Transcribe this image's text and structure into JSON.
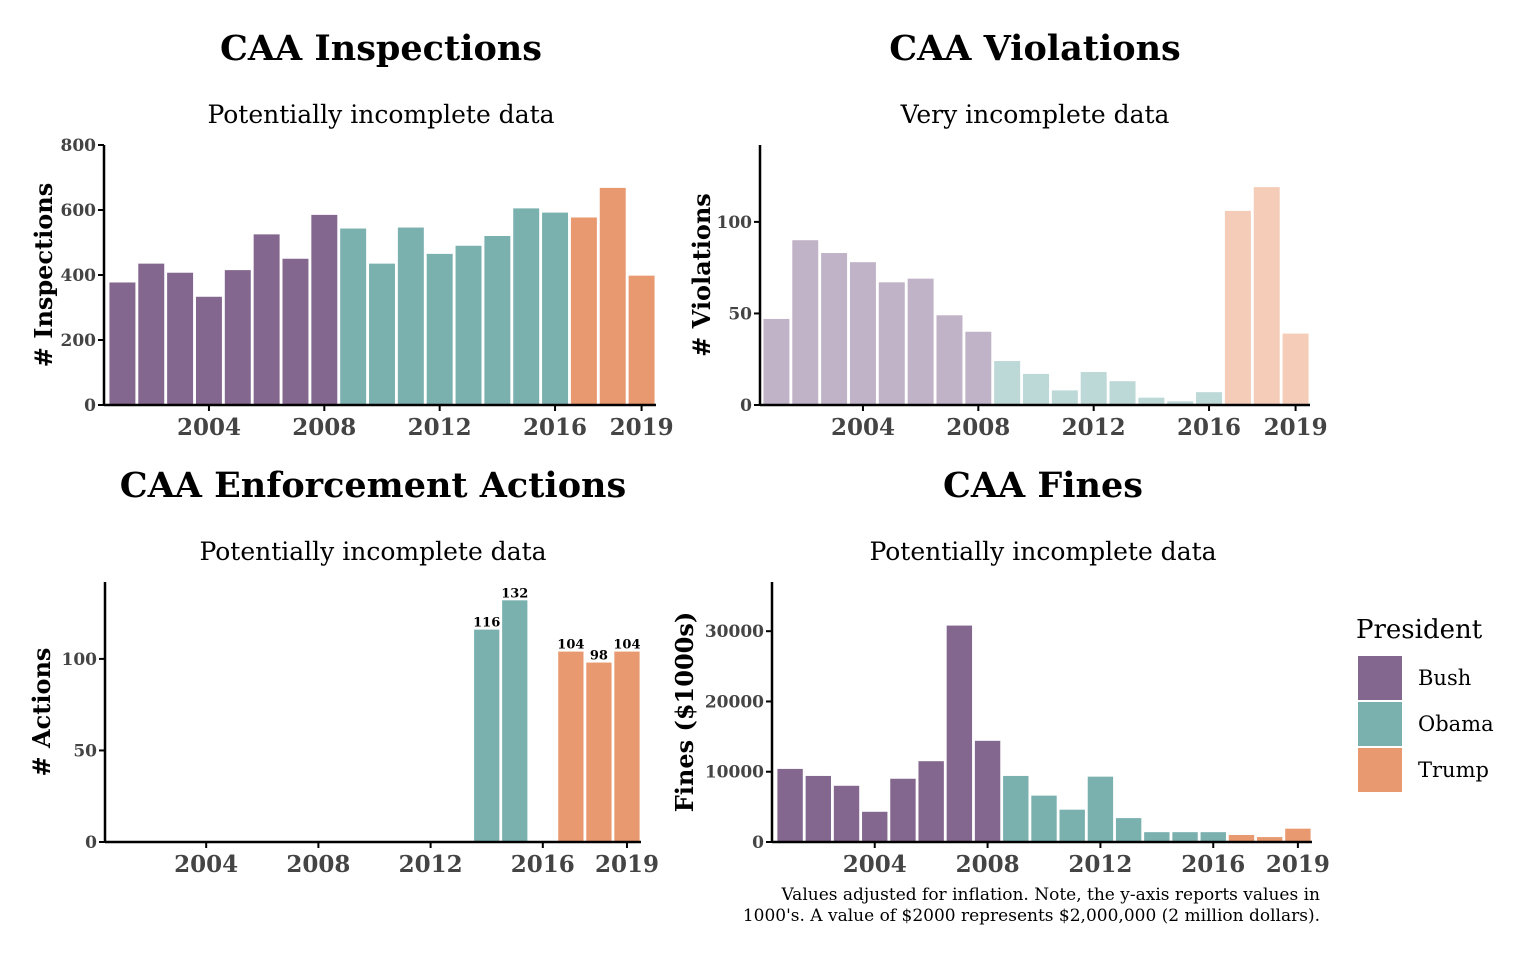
{
  "colors": {
    "Bush": "#84678f",
    "Obama": "#7ab1af",
    "Trump": "#e9996f"
  },
  "legend": {
    "title": "President",
    "items": [
      {
        "label": "Bush",
        "color": "#84678f"
      },
      {
        "label": "Obama",
        "color": "#7ab1af"
      },
      {
        "label": "Trump",
        "color": "#e9996f"
      }
    ]
  },
  "note": {
    "line1": "Values adjusted for inflation. Note, the y-axis reports values in",
    "line2": "1000's. A value of $2000 represents $2,000,000 (2 million dollars)."
  },
  "chart_data": [
    {
      "type": "bar",
      "title": "CAA Inspections",
      "subtitle": "Potentially incomplete data",
      "xlabel": "",
      "ylabel": "# Inspections",
      "ylim": [
        0,
        800
      ],
      "yticks": [
        0,
        200,
        400,
        600,
        800
      ],
      "xticks": [
        2004,
        2008,
        2012,
        2016,
        2019
      ],
      "faded": false,
      "x": [
        2001,
        2002,
        2003,
        2004,
        2005,
        2006,
        2007,
        2008,
        2009,
        2010,
        2011,
        2012,
        2013,
        2014,
        2015,
        2016,
        2017,
        2018,
        2019
      ],
      "values": [
        377,
        435,
        407,
        333,
        415,
        525,
        450,
        585,
        543,
        435,
        546,
        465,
        490,
        520,
        605,
        592,
        577,
        668,
        398
      ],
      "president": [
        "Bush",
        "Bush",
        "Bush",
        "Bush",
        "Bush",
        "Bush",
        "Bush",
        "Bush",
        "Obama",
        "Obama",
        "Obama",
        "Obama",
        "Obama",
        "Obama",
        "Obama",
        "Obama",
        "Trump",
        "Trump",
        "Trump"
      ]
    },
    {
      "type": "bar",
      "title": "CAA Violations",
      "subtitle": "Very incomplete data",
      "xlabel": "",
      "ylabel": "# Violations",
      "ylim": [
        0,
        142
      ],
      "yticks": [
        0,
        50,
        100
      ],
      "xticks": [
        2004,
        2008,
        2012,
        2016,
        2019
      ],
      "faded": true,
      "x": [
        2001,
        2002,
        2003,
        2004,
        2005,
        2006,
        2007,
        2008,
        2009,
        2010,
        2011,
        2012,
        2013,
        2014,
        2015,
        2016,
        2017,
        2018,
        2019
      ],
      "values": [
        47,
        90,
        83,
        78,
        67,
        69,
        49,
        40,
        24,
        17,
        8,
        18,
        13,
        4,
        2,
        7,
        106,
        119,
        39
      ],
      "president": [
        "Bush",
        "Bush",
        "Bush",
        "Bush",
        "Bush",
        "Bush",
        "Bush",
        "Bush",
        "Obama",
        "Obama",
        "Obama",
        "Obama",
        "Obama",
        "Obama",
        "Obama",
        "Obama",
        "Trump",
        "Trump",
        "Trump"
      ]
    },
    {
      "type": "bar",
      "title": "CAA Enforcement Actions",
      "subtitle": "Potentially incomplete data",
      "xlabel": "",
      "ylabel": "# Actions",
      "ylim": [
        0,
        142
      ],
      "yticks": [
        0,
        50,
        100
      ],
      "xticks": [
        2004,
        2008,
        2012,
        2016,
        2019
      ],
      "faded": false,
      "x": [
        2014,
        2015,
        2017,
        2018,
        2019
      ],
      "values": [
        116,
        132,
        104,
        98,
        104
      ],
      "data_labels": [
        "116",
        "132",
        "104",
        "98",
        "104"
      ],
      "president": [
        "Obama",
        "Obama",
        "Trump",
        "Trump",
        "Trump"
      ]
    },
    {
      "type": "bar",
      "title": "CAA Fines",
      "subtitle": "Potentially incomplete data",
      "xlabel": "",
      "ylabel": "Fines ($1000s)",
      "ylim": [
        0,
        37000
      ],
      "yticks": [
        0,
        10000,
        20000,
        30000
      ],
      "xticks": [
        2004,
        2008,
        2012,
        2016,
        2019
      ],
      "faded": false,
      "x": [
        2001,
        2002,
        2003,
        2004,
        2005,
        2006,
        2007,
        2008,
        2009,
        2010,
        2011,
        2012,
        2013,
        2014,
        2015,
        2016,
        2017,
        2018,
        2019
      ],
      "values": [
        10400,
        9400,
        8000,
        4300,
        9000,
        11500,
        30800,
        14400,
        9400,
        6600,
        4600,
        9300,
        3400,
        1400,
        1400,
        1400,
        1000,
        700,
        1900
      ],
      "president": [
        "Bush",
        "Bush",
        "Bush",
        "Bush",
        "Bush",
        "Bush",
        "Bush",
        "Bush",
        "Obama",
        "Obama",
        "Obama",
        "Obama",
        "Obama",
        "Obama",
        "Obama",
        "Obama",
        "Trump",
        "Trump",
        "Trump"
      ]
    }
  ]
}
